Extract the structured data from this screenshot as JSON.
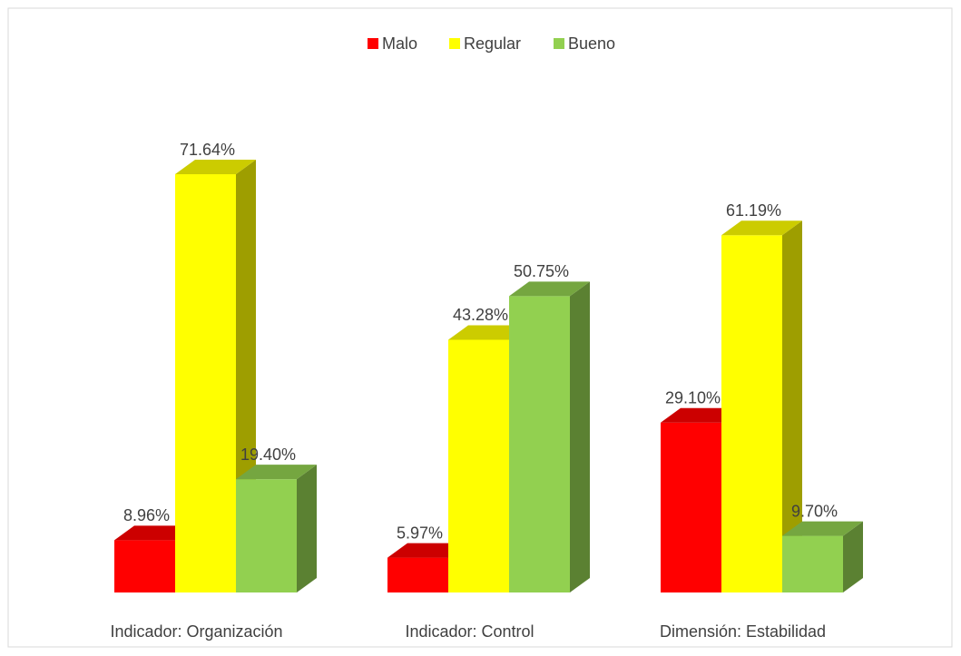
{
  "chart_data": {
    "type": "bar3d",
    "categories": [
      "Indicador: Organización",
      "Indicador: Control",
      "Dimensión: Estabilidad"
    ],
    "series": [
      {
        "name": "Malo",
        "color": "#ff0000",
        "values": [
          8.96,
          5.97,
          29.1
        ],
        "value_labels": [
          "8.96%",
          "5.97%",
          "29.10%"
        ]
      },
      {
        "name": "Regular",
        "color": "#ffff00",
        "values": [
          71.64,
          43.28,
          61.19
        ],
        "value_labels": [
          "71.64%",
          "43.28%",
          "61.19%"
        ]
      },
      {
        "name": "Bueno",
        "color": "#92d050",
        "values": [
          19.4,
          50.75,
          9.7
        ],
        "value_labels": [
          "19.40%",
          "50.75%",
          "9.70%"
        ]
      }
    ],
    "legend": "top"
  }
}
